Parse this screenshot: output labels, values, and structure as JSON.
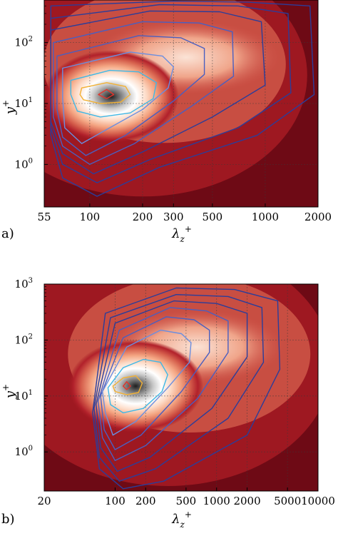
{
  "chart_data": [
    {
      "type": "heatmap",
      "panel_label": "a)",
      "xlabel": "λ_z^+",
      "ylabel": "y^+",
      "x_scale": "log",
      "y_scale": "log",
      "xlim": [
        55,
        2000
      ],
      "ylim": [
        0.2,
        500
      ],
      "x_ticks": [
        55,
        100,
        200,
        300,
        500,
        1000,
        2000
      ],
      "x_tick_labels": [
        "55",
        "100",
        "200",
        "300",
        "500",
        "1000",
        "2000"
      ],
      "y_ticks": [
        1,
        10,
        100
      ],
      "y_tick_labels": [
        "10",
        "10",
        "10"
      ],
      "y_tick_exponents": [
        "0",
        "1",
        "2"
      ],
      "grid": true,
      "colormap": [
        "#6e0a15",
        "#a31a22",
        "#d6604d",
        "#f4a582",
        "#fddbc7",
        "#ffffff",
        "#9a9a9a",
        "#1e1e1e"
      ],
      "peak": {
        "x": 115,
        "y": 13
      },
      "contour_colors": [
        "#2b3d9a",
        "#4a5fc0",
        "#6a8ee0",
        "#3fb8e6",
        "#f2b134",
        "#e2342b"
      ],
      "contour_levels": [
        {
          "color": "#2b3d9a",
          "points": [
            [
              60,
              400
            ],
            [
              300,
              480
            ],
            [
              800,
              460
            ],
            [
              1800,
              400
            ],
            [
              1900,
              14
            ],
            [
              900,
              3
            ],
            [
              250,
              0.9
            ],
            [
              110,
              0.3
            ],
            [
              70,
              0.6
            ],
            [
              60,
              3
            ]
          ]
        },
        {
          "color": "#2b3d9a",
          "points": [
            [
              60,
              250
            ],
            [
              250,
              420
            ],
            [
              700,
              400
            ],
            [
              1350,
              300
            ],
            [
              1400,
              15
            ],
            [
              700,
              4
            ],
            [
              220,
              1.2
            ],
            [
              110,
              0.5
            ],
            [
              70,
              1
            ],
            [
              60,
              4
            ]
          ]
        },
        {
          "color": "#2b3d9a",
          "points": [
            [
              60,
              160
            ],
            [
              220,
              330
            ],
            [
              550,
              320
            ],
            [
              950,
              220
            ],
            [
              1000,
              20
            ],
            [
              500,
              6
            ],
            [
              200,
              1.6
            ],
            [
              105,
              0.7
            ],
            [
              70,
              1.5
            ],
            [
              60,
              5
            ]
          ]
        },
        {
          "color": "#4a5fc0",
          "points": [
            [
              62,
              100
            ],
            [
              200,
              220
            ],
            [
              420,
              210
            ],
            [
              650,
              150
            ],
            [
              660,
              28
            ],
            [
              380,
              9
            ],
            [
              180,
              2.2
            ],
            [
              100,
              1.0
            ],
            [
              70,
              2
            ],
            [
              62,
              6
            ]
          ]
        },
        {
          "color": "#4a5fc0",
          "points": [
            [
              65,
              60
            ],
            [
              190,
              130
            ],
            [
              330,
              120
            ],
            [
              450,
              80
            ],
            [
              450,
              30
            ],
            [
              300,
              11
            ],
            [
              160,
              3
            ],
            [
              95,
              1.4
            ],
            [
              70,
              2.8
            ],
            [
              65,
              8
            ]
          ]
        },
        {
          "color": "#6a8ee0",
          "points": [
            [
              70,
              38
            ],
            [
              170,
              70
            ],
            [
              260,
              60
            ],
            [
              300,
              40
            ],
            [
              280,
              18
            ],
            [
              200,
              8
            ],
            [
              130,
              4
            ],
            [
              90,
              2.2
            ],
            [
              72,
              4
            ],
            [
              70,
              12
            ]
          ]
        },
        {
          "color": "#3fb8e6",
          "points": [
            [
              78,
              24
            ],
            [
              130,
              35
            ],
            [
              190,
              33
            ],
            [
              240,
              22
            ],
            [
              230,
              12
            ],
            [
              170,
              7
            ],
            [
              115,
              6
            ],
            [
              85,
              7.5
            ],
            [
              78,
              14
            ]
          ]
        },
        {
          "color": "#f2b134",
          "points": [
            [
              90,
              18
            ],
            [
              125,
              22
            ],
            [
              160,
              19
            ],
            [
              170,
              14
            ],
            [
              150,
              10.5
            ],
            [
              115,
              10
            ],
            [
              92,
              11.5
            ],
            [
              88,
              14
            ]
          ]
        },
        {
          "color": "#e2342b",
          "points": [
            [
              112,
              14
            ],
            [
              125,
              17
            ],
            [
              137,
              14
            ],
            [
              125,
              12
            ]
          ]
        }
      ]
    },
    {
      "type": "heatmap",
      "panel_label": "b)",
      "xlabel": "λ_z^+",
      "ylabel": "y^+",
      "x_scale": "log",
      "y_scale": "log",
      "xlim": [
        20,
        10000
      ],
      "ylim": [
        0.2,
        1000
      ],
      "x_ticks": [
        20,
        100,
        200,
        500,
        1000,
        2000,
        5000,
        10000
      ],
      "x_tick_labels": [
        "20",
        "100",
        "200",
        "500",
        "1000",
        "2000",
        "5000",
        "10000"
      ],
      "y_ticks": [
        1,
        10,
        100,
        1000
      ],
      "y_tick_labels": [
        "10",
        "10",
        "10",
        "10"
      ],
      "y_tick_exponents": [
        "0",
        "1",
        "2",
        "3"
      ],
      "grid": true,
      "colormap": [
        "#6e0a15",
        "#a31a22",
        "#d6604d",
        "#f4a582",
        "#fddbc7",
        "#ffffff",
        "#9a9a9a",
        "#1e1e1e"
      ],
      "peak": {
        "x": 125,
        "y": 15
      },
      "contour_colors": [
        "#2b3d9a",
        "#4a5fc0",
        "#6a8ee0",
        "#3fb8e6",
        "#f2b134",
        "#e2342b"
      ],
      "contour_levels": [
        {
          "color": "#2b3d9a",
          "points": [
            [
              60,
              5
            ],
            [
              80,
              300
            ],
            [
              400,
              850
            ],
            [
              1500,
              800
            ],
            [
              4000,
              500
            ],
            [
              4200,
              30
            ],
            [
              2000,
              2
            ],
            [
              300,
              0.3
            ],
            [
              120,
              0.22
            ],
            [
              70,
              0.5
            ]
          ]
        },
        {
          "color": "#2b3d9a",
          "points": [
            [
              62,
              6
            ],
            [
              90,
              250
            ],
            [
              400,
              650
            ],
            [
              1300,
              600
            ],
            [
              2800,
              380
            ],
            [
              2900,
              40
            ],
            [
              1300,
              4
            ],
            [
              250,
              0.5
            ],
            [
              110,
              0.3
            ],
            [
              70,
              0.8
            ]
          ]
        },
        {
          "color": "#2b3d9a",
          "points": [
            [
              65,
              7
            ],
            [
              100,
              200
            ],
            [
              380,
              500
            ],
            [
              1000,
              450
            ],
            [
              2000,
              300
            ],
            [
              2000,
              50
            ],
            [
              900,
              6
            ],
            [
              220,
              0.8
            ],
            [
              105,
              0.45
            ],
            [
              72,
              1.2
            ]
          ]
        },
        {
          "color": "#4a5fc0",
          "points": [
            [
              68,
              8
            ],
            [
              110,
              150
            ],
            [
              350,
              380
            ],
            [
              800,
              330
            ],
            [
              1300,
              220
            ],
            [
              1300,
              60
            ],
            [
              650,
              9
            ],
            [
              200,
              1.3
            ],
            [
              100,
              0.7
            ],
            [
              75,
              1.8
            ]
          ]
        },
        {
          "color": "#4a5fc0",
          "points": [
            [
              72,
              10
            ],
            [
              120,
              110
            ],
            [
              320,
              260
            ],
            [
              600,
              230
            ],
            [
              850,
              150
            ],
            [
              850,
              60
            ],
            [
              450,
              12
            ],
            [
              180,
              2
            ],
            [
              100,
              1.1
            ],
            [
              78,
              2.5
            ]
          ]
        },
        {
          "color": "#6a8ee0",
          "points": [
            [
              75,
              12
            ],
            [
              130,
              75
            ],
            [
              280,
              150
            ],
            [
              450,
              130
            ],
            [
              560,
              90
            ],
            [
              540,
              40
            ],
            [
              330,
              14
            ],
            [
              160,
              3.5
            ],
            [
              95,
              2
            ],
            [
              80,
              5
            ]
          ]
        },
        {
          "color": "#3fb8e6",
          "points": [
            [
              85,
              14
            ],
            [
              120,
              32
            ],
            [
              190,
              45
            ],
            [
              280,
              40
            ],
            [
              330,
              24
            ],
            [
              290,
              12
            ],
            [
              190,
              6
            ],
            [
              120,
              5
            ],
            [
              90,
              7
            ]
          ]
        },
        {
          "color": "#f2b134",
          "points": [
            [
              95,
              15
            ],
            [
              120,
              21
            ],
            [
              160,
              23
            ],
            [
              185,
              17
            ],
            [
              170,
              11.5
            ],
            [
              130,
              10.5
            ],
            [
              100,
              12
            ]
          ]
        },
        {
          "color": "#e2342b",
          "points": [
            [
              120,
              15
            ],
            [
              130,
              18
            ],
            [
              142,
              15
            ],
            [
              130,
              13
            ]
          ]
        }
      ]
    }
  ]
}
